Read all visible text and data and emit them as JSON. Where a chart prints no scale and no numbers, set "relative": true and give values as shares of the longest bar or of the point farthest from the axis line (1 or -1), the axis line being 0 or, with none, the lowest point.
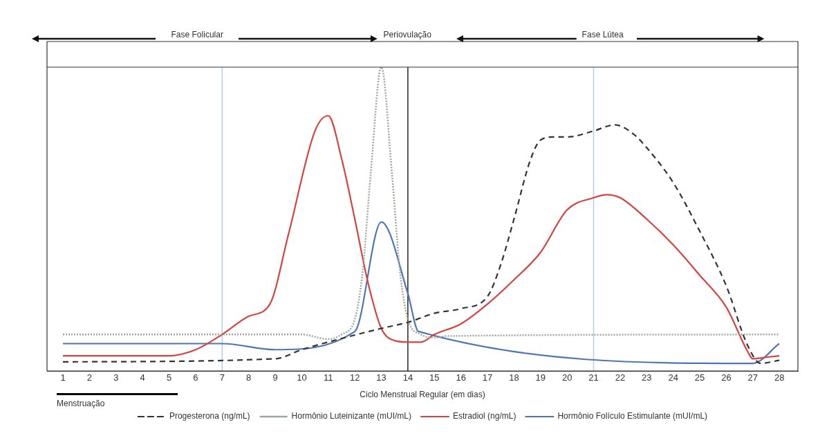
{
  "chart_data": {
    "type": "line",
    "relative": true,
    "xlabel": "Ciclo Menstrual Regular (em dias)",
    "xlim": [
      0.4,
      28.7
    ],
    "xticks": [
      1,
      2,
      3,
      4,
      5,
      6,
      7,
      8,
      9,
      10,
      11,
      12,
      13,
      14,
      15,
      16,
      17,
      18,
      19,
      20,
      21,
      22,
      23,
      24,
      25,
      26,
      27,
      28
    ],
    "grid": false,
    "legend": "bottom",
    "annotations": [
      "Fase Folicular",
      "Periovulação",
      "Fase Lútea",
      "Menstruação"
    ],
    "ref_lines": [
      {
        "axis": "x",
        "value": 7,
        "color": "#b8cce4"
      },
      {
        "axis": "x",
        "value": 14,
        "color": "#222222"
      },
      {
        "axis": "x",
        "value": 21,
        "color": "#b8cce4"
      }
    ],
    "series": [
      {
        "name": "Progesterona (ng/mL)",
        "color": "#333333",
        "line_style": "dashed",
        "x": [
          1,
          9,
          10,
          13,
          14,
          15,
          16,
          17,
          17.5,
          18,
          18.6,
          19,
          19.5,
          20,
          21,
          21.8,
          22.5,
          23,
          24,
          25,
          26,
          26.8,
          27.3,
          28
        ],
        "values": [
          0.03,
          0.04,
          0.07,
          0.14,
          0.16,
          0.19,
          0.205,
          0.245,
          0.35,
          0.5,
          0.69,
          0.76,
          0.77,
          0.77,
          0.79,
          0.81,
          0.78,
          0.735,
          0.62,
          0.46,
          0.28,
          0.085,
          0.025,
          0.035
        ]
      },
      {
        "name": "Hormônio Luteinizante (mUI/mL)",
        "color": "#9aa89a",
        "line_style": "dotted",
        "x": [
          1,
          10,
          11,
          11.5,
          12,
          12.3,
          12.6,
          13,
          13.4,
          13.7,
          14,
          14.5,
          15,
          15.5,
          28
        ],
        "values": [
          0.12,
          0.12,
          0.105,
          0.12,
          0.17,
          0.33,
          0.65,
          1,
          0.65,
          0.33,
          0.17,
          0.12,
          0.11,
          0.115,
          0.12
        ]
      },
      {
        "name": "Estradiol (ng/mL)",
        "color": "#d9413f",
        "line_style": "solid",
        "x": [
          1,
          5,
          6,
          7,
          8,
          8.8,
          9.5,
          10.5,
          11,
          11.5,
          12,
          12.5,
          13,
          13.5,
          14,
          14.5,
          15,
          16,
          17,
          18,
          19,
          20,
          21,
          21.5,
          22,
          23,
          24,
          25,
          26,
          26.8,
          27,
          27.5,
          28
        ],
        "values": [
          0.05,
          0.05,
          0.07,
          0.12,
          0.18,
          0.22,
          0.45,
          0.79,
          0.84,
          0.7,
          0.5,
          0.29,
          0.14,
          0.1,
          0.095,
          0.095,
          0.12,
          0.155,
          0.22,
          0.3,
          0.39,
          0.53,
          0.57,
          0.58,
          0.57,
          0.5,
          0.415,
          0.315,
          0.21,
          0.065,
          0.04,
          0.045,
          0.05
        ]
      },
      {
        "name": "Hormônio Folículo Estimulante (mUI/mL)",
        "color": "#4f75b5",
        "line_style": "solid",
        "x": [
          1,
          7,
          9,
          12,
          13,
          14,
          14.4,
          27,
          28
        ],
        "values": [
          0.09,
          0.09,
          0.07,
          0.13,
          0.49,
          0.255,
          0.13,
          0.025,
          0.09
        ]
      }
    ]
  }
}
